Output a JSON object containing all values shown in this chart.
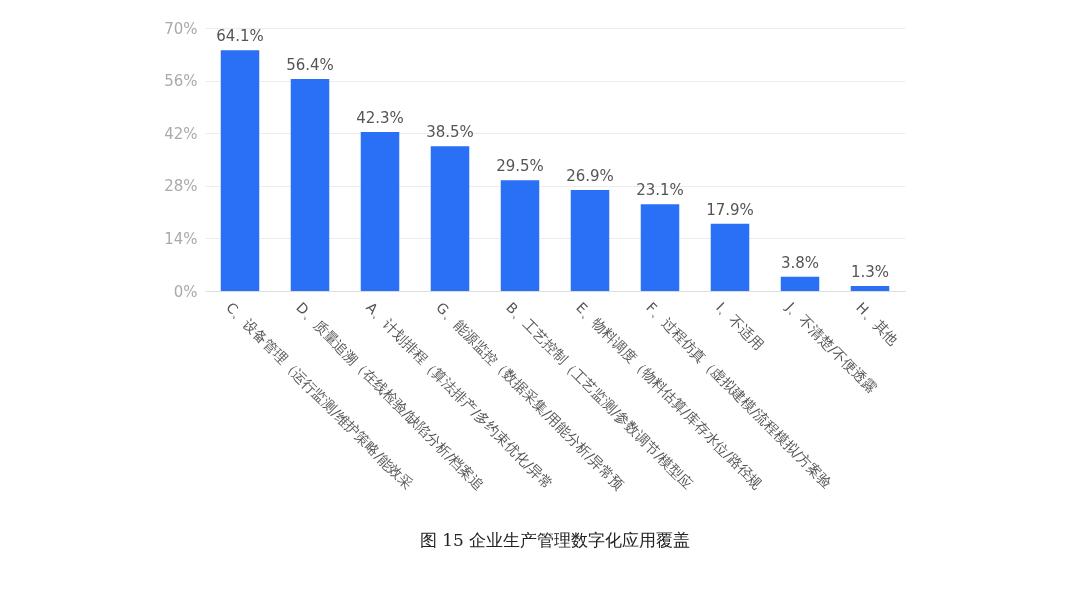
{
  "chart_data": {
    "type": "bar",
    "title": "图 15 企业生产管理数字化应用覆盖",
    "categories": [
      "C、设备管理（运行监测/维护策略/能效采",
      "D、质量追溯（在线检验/缺陷分析/档案追",
      "A、计划排程（算法排产/多约束优化/异常",
      "G、能源监控（数据采集/用能分析/异常预",
      "B、工艺控制（工艺监测/参数调节/模型应",
      "E、物料调度（物料估算/库存水位/路径规",
      "F、过程仿真（虚拟建模/流程模拟/方案验",
      "I、不适用",
      "J、不清楚/不便透露",
      "H、其他"
    ],
    "values": [
      64.1,
      56.4,
      42.3,
      38.5,
      29.5,
      26.9,
      23.1,
      17.9,
      3.8,
      1.3
    ],
    "value_labels": [
      "64.1%",
      "56.4%",
      "42.3%",
      "38.5%",
      "29.5%",
      "26.9%",
      "23.1%",
      "17.9%",
      "3.8%",
      "1.3%"
    ],
    "color": "#2970f6",
    "ylim": [
      0,
      70
    ],
    "yticks": [
      {
        "value": 0,
        "label": "0%"
      },
      {
        "value": 14,
        "label": "14%"
      },
      {
        "value": 28,
        "label": "28%"
      },
      {
        "value": 42,
        "label": "42%"
      },
      {
        "value": 56,
        "label": "56%"
      },
      {
        "value": 70,
        "label": "70%"
      }
    ],
    "grid": "y"
  }
}
